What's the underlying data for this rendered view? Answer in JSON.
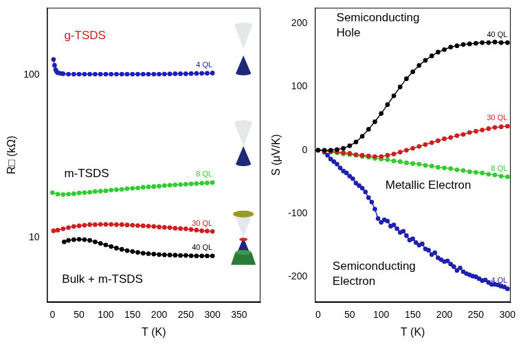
{
  "chart_data": [
    {
      "type": "line",
      "x_label": "T (K)",
      "y_label": "R□ (kΩ)",
      "log": "y",
      "grid": false,
      "xlim": [
        -10,
        390
      ],
      "xticks": [
        0,
        50,
        100,
        150,
        200,
        250,
        300,
        350
      ],
      "ylim": [
        4,
        260
      ],
      "yticks": [
        10,
        100
      ],
      "annotations": [
        {
          "text": "g-TSDS",
          "color": "#cc2020"
        },
        {
          "text": "m-TSDS",
          "color": "#000000"
        },
        {
          "text": "Bulk + m-TSDS",
          "color": "#000000"
        }
      ],
      "series": [
        {
          "name": "4 QL",
          "color": "#2020b0",
          "marker": "circle",
          "x": [
            2,
            4,
            6,
            8,
            10,
            15,
            20,
            30,
            40,
            50,
            60,
            70,
            80,
            90,
            100,
            110,
            120,
            130,
            140,
            150,
            160,
            170,
            180,
            190,
            200,
            210,
            220,
            230,
            240,
            250,
            260,
            270,
            280,
            290,
            300
          ],
          "values": [
            125,
            115,
            108,
            105,
            103.5,
            102.5,
            102,
            101.5,
            101.5,
            101.5,
            101.5,
            101.5,
            101.5,
            101.5,
            101.5,
            101.5,
            101.5,
            101.5,
            101.5,
            101.5,
            101.5,
            101.5,
            101.5,
            101.5,
            101.5,
            101.7,
            101.8,
            102,
            102,
            102,
            102.3,
            102.5,
            102.7,
            102.8,
            103
          ]
        },
        {
          "name": "8 QL",
          "color": "#33cc33",
          "marker": "circle",
          "x": [
            0,
            10,
            20,
            30,
            40,
            50,
            60,
            70,
            80,
            90,
            100,
            110,
            120,
            130,
            140,
            150,
            160,
            170,
            180,
            190,
            200,
            210,
            220,
            230,
            240,
            250,
            260,
            270,
            280,
            290,
            300
          ],
          "values": [
            18.9,
            18.5,
            18.4,
            18.5,
            18.6,
            18.8,
            18.9,
            19.0,
            19.2,
            19.3,
            19.4,
            19.6,
            19.7,
            19.8,
            20.0,
            20.1,
            20.2,
            20.4,
            20.5,
            20.6,
            20.7,
            20.9,
            21.0,
            21.1,
            21.2,
            21.3,
            21.4,
            21.5,
            21.6,
            21.7,
            21.8
          ]
        },
        {
          "name": "30 QL",
          "color": "#cc2020",
          "marker": "circle",
          "x": [
            2,
            10,
            20,
            30,
            40,
            50,
            60,
            70,
            80,
            90,
            100,
            110,
            120,
            130,
            140,
            150,
            160,
            170,
            180,
            190,
            200,
            210,
            220,
            230,
            240,
            250,
            260,
            270,
            280,
            290,
            300
          ],
          "values": [
            11.0,
            11.1,
            11.3,
            11.5,
            11.7,
            11.8,
            11.9,
            12.0,
            12.0,
            12.05,
            12.05,
            12.05,
            12.0,
            12.0,
            11.95,
            11.9,
            11.85,
            11.8,
            11.75,
            11.7,
            11.6,
            11.55,
            11.5,
            11.4,
            11.35,
            11.3,
            11.2,
            11.1,
            11.0,
            10.95,
            10.9
          ]
        },
        {
          "name": "40 QL",
          "color": "#000000",
          "marker": "circle",
          "x": [
            22,
            30,
            40,
            50,
            60,
            70,
            80,
            90,
            100,
            110,
            120,
            130,
            140,
            150,
            160,
            170,
            180,
            190,
            200,
            210,
            220,
            230,
            240,
            250,
            260,
            270,
            280,
            290,
            300
          ],
          "values": [
            9.4,
            9.6,
            9.7,
            9.75,
            9.7,
            9.6,
            9.4,
            9.2,
            9.0,
            8.8,
            8.6,
            8.45,
            8.3,
            8.2,
            8.1,
            8.0,
            7.95,
            7.9,
            7.85,
            7.82,
            7.8,
            7.78,
            7.75,
            7.75,
            7.72,
            7.7,
            7.7,
            7.7,
            7.7
          ]
        }
      ]
    },
    {
      "type": "line",
      "x_label": "T (K)",
      "y_label": "S (μV/K)",
      "grid": false,
      "xlim": [
        -5,
        305
      ],
      "xticks": [
        0,
        50,
        100,
        150,
        200,
        250,
        300
      ],
      "ylim": [
        -240,
        225
      ],
      "yticks": [
        -200,
        -100,
        0,
        100,
        200
      ],
      "annotations": [
        {
          "text": "Semiconducting Hole",
          "color": "#000000"
        },
        {
          "text": "Metallic Electron",
          "color": "#000000"
        },
        {
          "text": "Semiconducting Electron",
          "color": "#000000"
        }
      ],
      "series": [
        {
          "name": "40 QL",
          "color": "#000000",
          "marker": "circle",
          "x": [
            0,
            10,
            20,
            30,
            40,
            50,
            60,
            70,
            80,
            90,
            100,
            110,
            120,
            130,
            140,
            150,
            160,
            170,
            180,
            190,
            200,
            210,
            220,
            230,
            240,
            250,
            260,
            270,
            280,
            290,
            300
          ],
          "values": [
            0,
            0,
            0,
            1,
            3,
            7,
            13,
            22,
            33,
            45,
            58,
            72,
            86,
            100,
            113,
            124,
            134,
            142,
            149,
            155,
            159,
            163,
            165,
            167,
            168,
            169,
            170,
            170,
            171,
            170,
            170
          ]
        },
        {
          "name": "30 QL",
          "color": "#cc2020",
          "marker": "circle",
          "x": [
            0,
            10,
            20,
            30,
            40,
            50,
            60,
            70,
            80,
            90,
            100,
            110,
            120,
            130,
            140,
            150,
            160,
            170,
            180,
            190,
            200,
            210,
            220,
            230,
            240,
            250,
            260,
            270,
            280,
            290,
            300
          ],
          "values": [
            0,
            -1,
            -2,
            -3,
            -4,
            -5,
            -7,
            -8,
            -9,
            -10,
            -10,
            -8,
            -6,
            -3,
            0,
            3,
            6,
            9,
            12,
            15,
            18,
            20,
            23,
            25,
            28,
            30,
            32,
            34,
            36,
            37,
            38
          ]
        },
        {
          "name": "8 QL",
          "color": "#33cc33",
          "marker": "circle",
          "x": [
            0,
            10,
            20,
            30,
            40,
            50,
            60,
            70,
            80,
            90,
            100,
            110,
            120,
            130,
            140,
            150,
            160,
            170,
            180,
            190,
            200,
            210,
            220,
            230,
            240,
            250,
            260,
            270,
            280,
            290,
            300
          ],
          "values": [
            0,
            -1,
            -3,
            -4,
            -6,
            -7,
            -8,
            -10,
            -11,
            -13,
            -14,
            -15,
            -17,
            -18,
            -20,
            -21,
            -22,
            -24,
            -25,
            -27,
            -28,
            -29,
            -31,
            -32,
            -34,
            -35,
            -36,
            -38,
            -39,
            -41,
            -42
          ]
        },
        {
          "name": "4 QL",
          "color": "#2020b0",
          "marker": "circle",
          "x": [
            10,
            15,
            20,
            25,
            30,
            35,
            40,
            45,
            50,
            55,
            60,
            65,
            70,
            75,
            80,
            85,
            90,
            95,
            100,
            105,
            110,
            115,
            120,
            125,
            130,
            135,
            140,
            145,
            150,
            155,
            160,
            165,
            170,
            175,
            180,
            185,
            190,
            195,
            200,
            205,
            210,
            215,
            220,
            225,
            230,
            235,
            240,
            245,
            250,
            255,
            260,
            265,
            270,
            275,
            280,
            285,
            290,
            295,
            300
          ],
          "values": [
            -3,
            -8,
            -14,
            -18,
            -22,
            -28,
            -33,
            -36,
            -41,
            -45,
            -52,
            -56,
            -60,
            -66,
            -75,
            -82,
            -93,
            -108,
            -114,
            -110,
            -112,
            -120,
            -118,
            -124,
            -130,
            -128,
            -135,
            -142,
            -140,
            -146,
            -150,
            -148,
            -156,
            -158,
            -165,
            -162,
            -170,
            -173,
            -176,
            -175,
            -180,
            -184,
            -190,
            -186,
            -192,
            -195,
            -197,
            -199,
            -200,
            -203,
            -206,
            -205,
            -209,
            -212,
            -212,
            -213,
            -215,
            -216,
            -219
          ]
        }
      ]
    }
  ]
}
